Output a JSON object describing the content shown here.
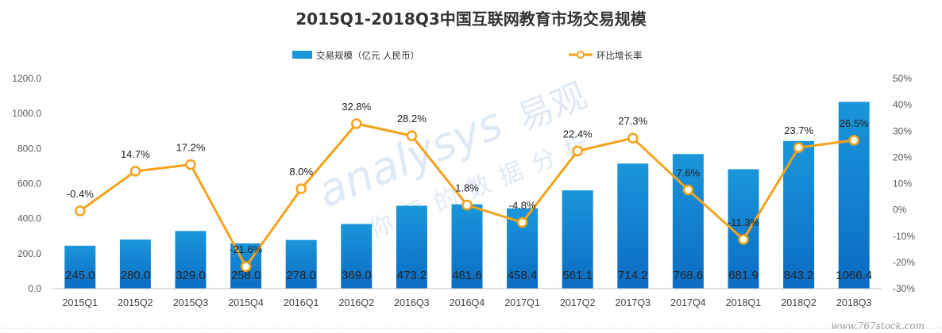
{
  "chart_data": {
    "type": "bar",
    "title": "2015Q1-2018Q3中国互联网教育市场交易规模",
    "categories": [
      "2015Q1",
      "2015Q2",
      "2015Q3",
      "2015Q4",
      "2016Q1",
      "2016Q2",
      "2016Q3",
      "2016Q4",
      "2017Q1",
      "2017Q2",
      "2017Q3",
      "2017Q4",
      "2018Q1",
      "2018Q2",
      "2018Q3"
    ],
    "series": [
      {
        "name": "交易规模（亿元 人民币）",
        "type": "bar",
        "axis": "left",
        "values": [
          245.0,
          280.0,
          329.0,
          258.0,
          278.0,
          369.0,
          473.2,
          481.6,
          458.4,
          561.1,
          714.2,
          768.6,
          681.9,
          843.2,
          1066.4
        ],
        "labels": [
          "245.0",
          "280.0",
          "329.0",
          "258.0",
          "278.0",
          "369.0",
          "473.2",
          "481.6",
          "458.4",
          "561.1",
          "714.2",
          "768.6",
          "681.9",
          "843.2",
          "1066.4"
        ]
      },
      {
        "name": "环比增长率",
        "type": "line",
        "axis": "right",
        "values": [
          -0.4,
          14.7,
          17.2,
          -21.6,
          8.0,
          32.8,
          28.2,
          1.8,
          -4.8,
          22.4,
          27.3,
          7.6,
          -11.3,
          23.7,
          26.5
        ],
        "labels": [
          "-0.4%",
          "14.7%",
          "17.2%",
          "-21.6%",
          "8.0%",
          "32.8%",
          "28.2%",
          "1.8%",
          "-4.8%",
          "22.4%",
          "27.3%",
          "7.6%",
          "-11.3%",
          "23.7%",
          "26.5%"
        ]
      }
    ],
    "y_left": {
      "ylim": [
        0,
        1200
      ],
      "ticks": [
        "0.0",
        "200.0",
        "400.0",
        "600.0",
        "800.0",
        "1000.0",
        "1200.0"
      ]
    },
    "y_right": {
      "ylim": [
        -30,
        50
      ],
      "ticks": [
        "-30%",
        "-20%",
        "-10%",
        "0%",
        "10%",
        "20%",
        "30%",
        "40%",
        "50%"
      ]
    },
    "legend_position": "top-center",
    "grid": false,
    "colors": {
      "bar_top": "#1a96da",
      "bar_bottom": "#0b6cc4",
      "line": "#f5a21a",
      "marker_fill": "#ffffff"
    }
  },
  "watermark": {
    "brand_en": "analysys",
    "brand_cn": "易观",
    "tagline": "你要的数据分析"
  },
  "footer": {
    "source": "www.767stock.com"
  }
}
